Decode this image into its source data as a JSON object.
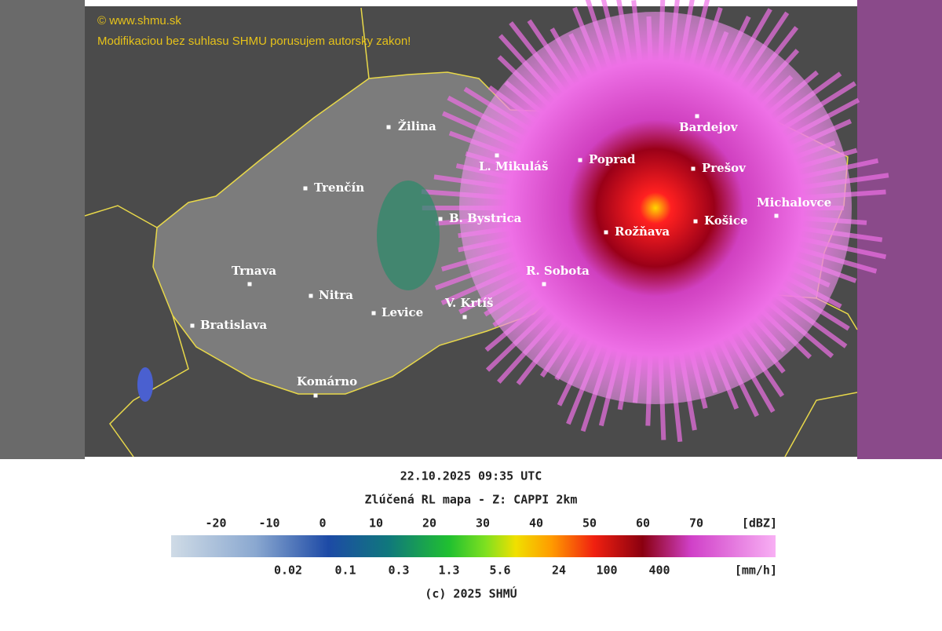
{
  "copyright": {
    "site": "© www.shmu.sk",
    "notice": "Modifikaciou bez suhlasu SHMU porusujem autorsky zakon!"
  },
  "cities": [
    "Žilina",
    "Trenčín",
    "B. Bystrica",
    "Trnava",
    "Nitra",
    "Levice",
    "V. Krtíš",
    "Bratislava",
    "Komárno",
    "R. Sobota",
    "L. Mikuláš",
    "Poprad",
    "Rožňava",
    "Bardejov",
    "Prešov",
    "Košice",
    "Michalovce"
  ],
  "caption": {
    "time": "22.10.2025 09:35 UTC",
    "product": "Zlúčená RL mapa - Z: CAPPI 2km"
  },
  "legend": {
    "dbz": [
      -20,
      -10,
      0,
      10,
      20,
      30,
      40,
      50,
      60,
      70
    ],
    "dbz_unit": "[dBZ]",
    "rain": [
      0.02,
      0.1,
      0.3,
      1.3,
      5.6,
      24,
      100,
      400
    ],
    "rain_unit": "[mm/h]"
  },
  "footer": "(c) 2025 SHMÚ"
}
